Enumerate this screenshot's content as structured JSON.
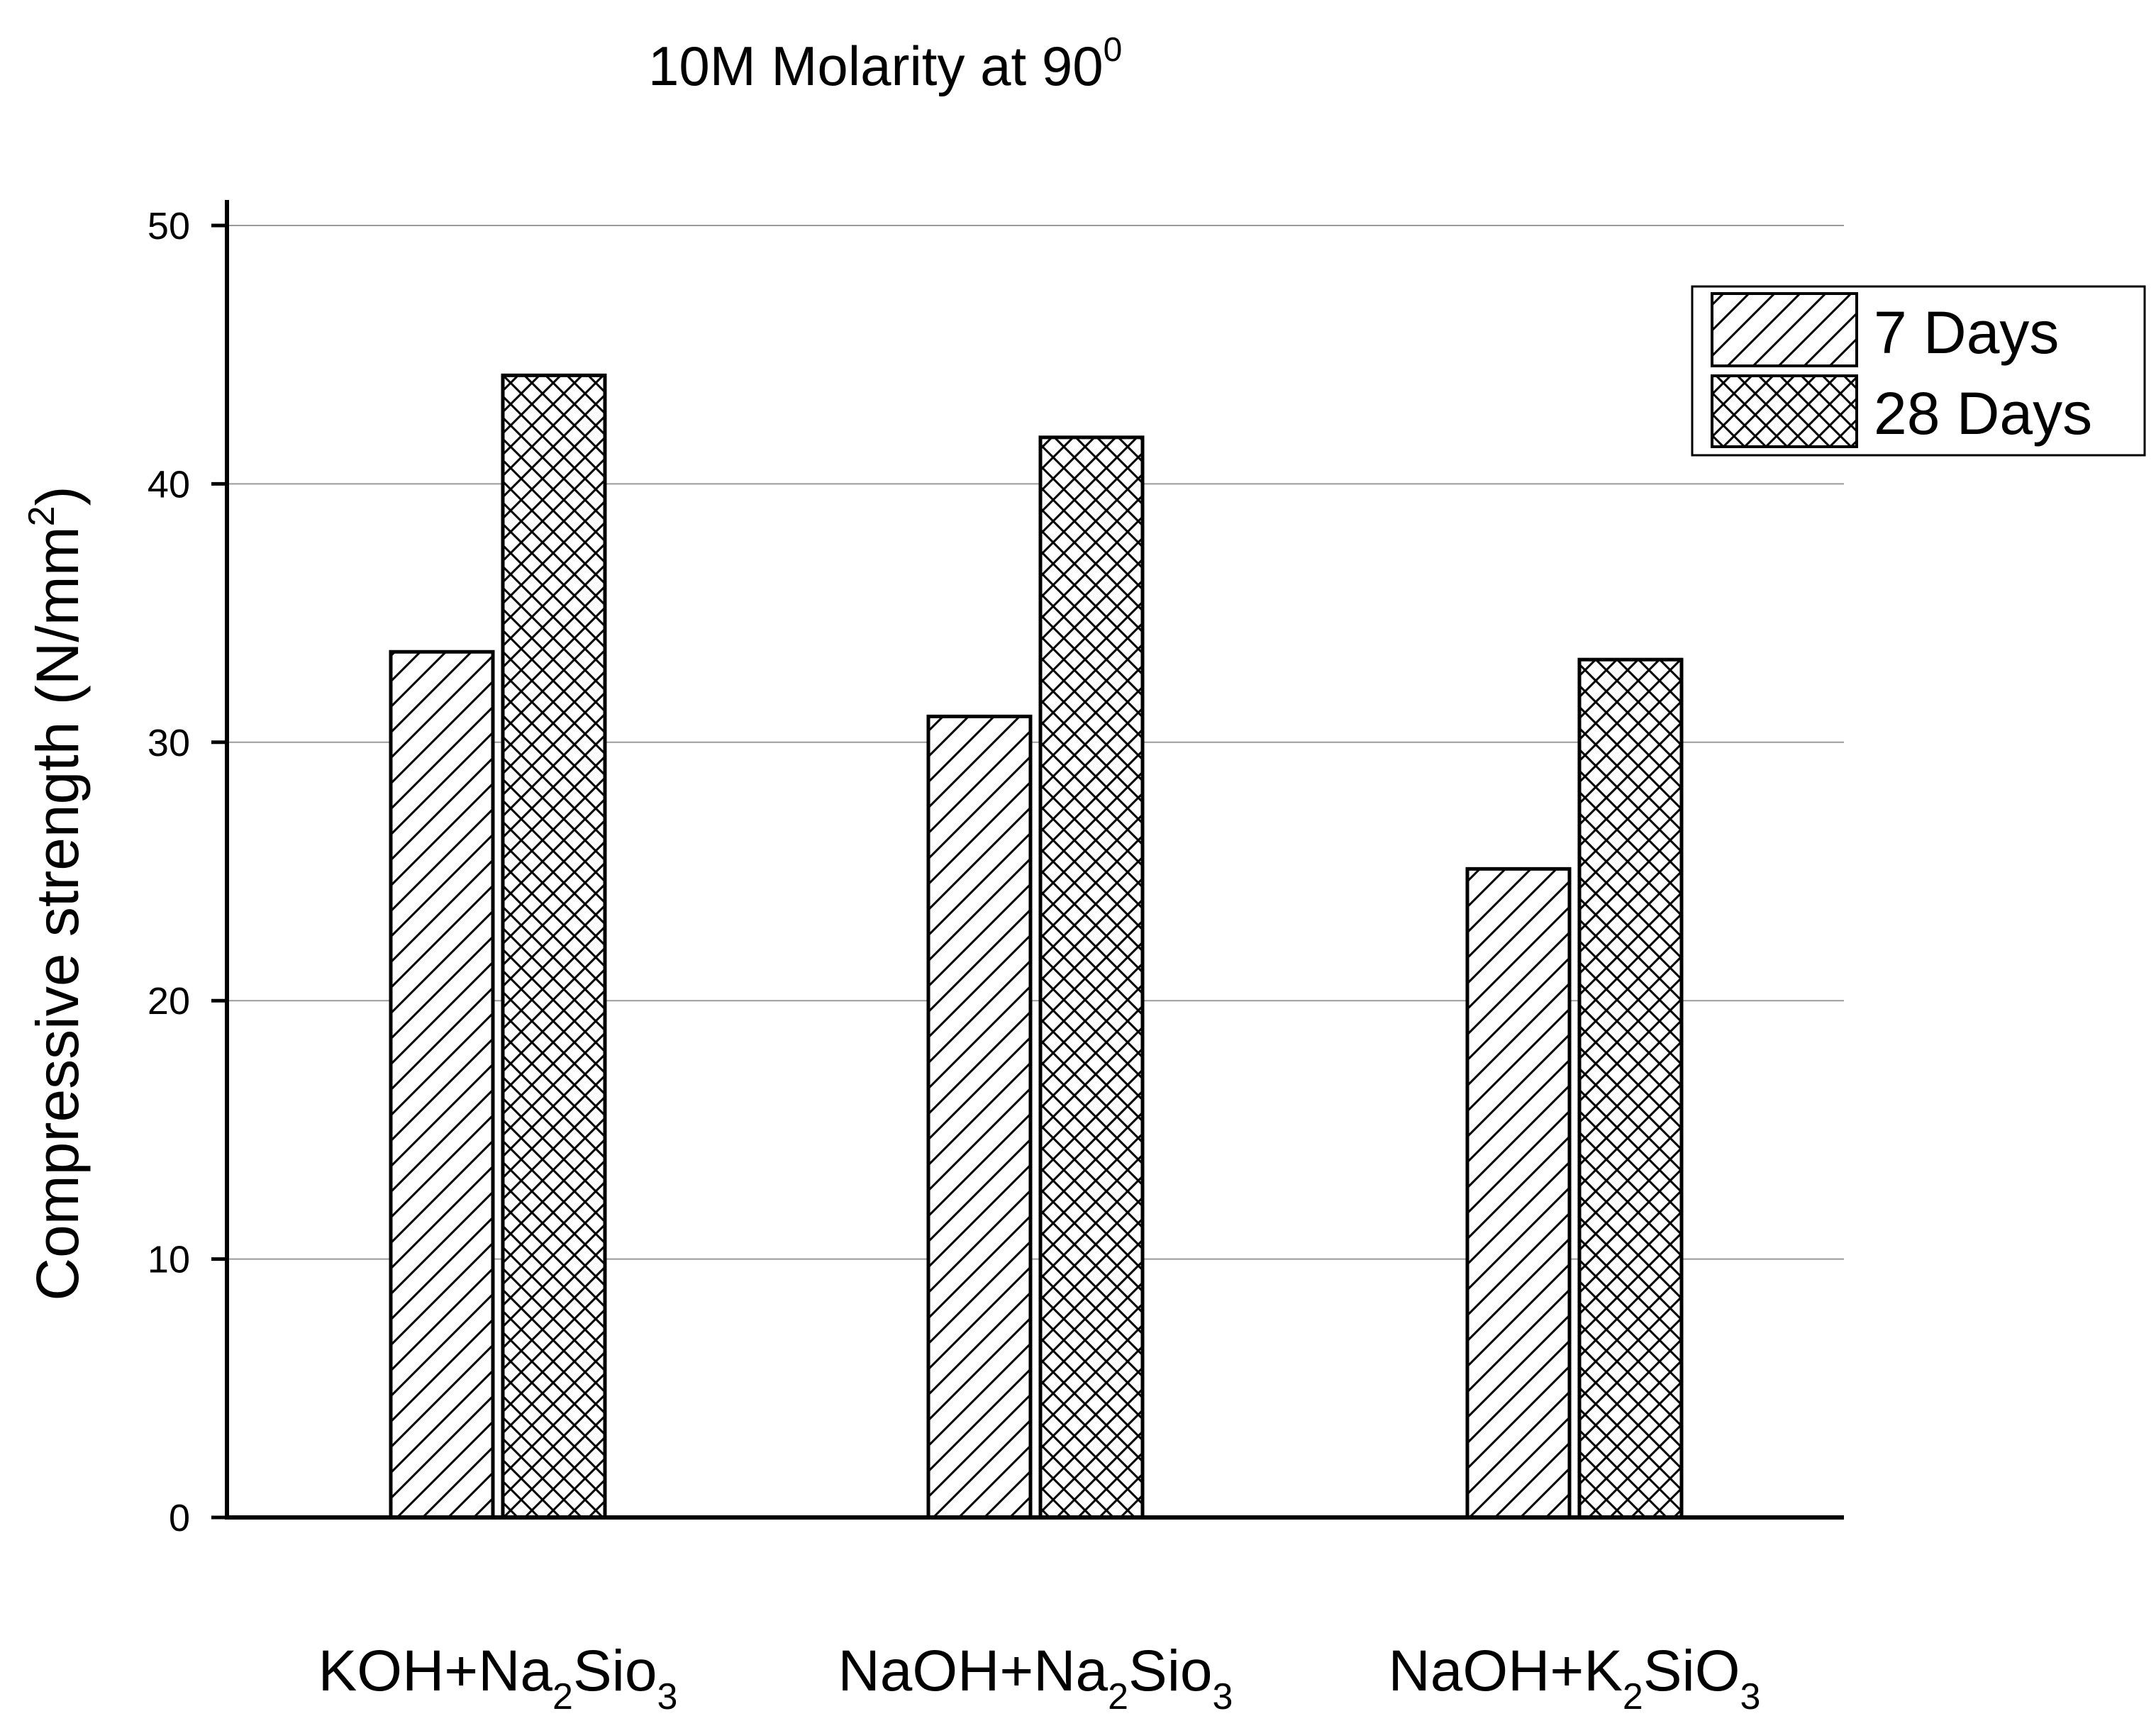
{
  "chart_data": {
    "type": "bar",
    "title": {
      "text": "10M Molarity at 90",
      "sup": "0"
    },
    "ylabel": {
      "pre": "Compressive strength (N/mm",
      "sup": "2",
      "post": ")"
    },
    "xlabel": "",
    "ylim": [
      0,
      50
    ],
    "yticks": [
      "0",
      "10",
      "20",
      "30",
      "40",
      "50"
    ],
    "grid": true,
    "legend_position": "top-right",
    "categories": [
      {
        "label": [
          {
            "t": "KOH+Na"
          },
          {
            "t": "2",
            "sub": true
          },
          {
            "t": "Sio"
          },
          {
            "t": "3",
            "sub": true
          }
        ]
      },
      {
        "label": [
          {
            "t": "NaOH+Na"
          },
          {
            "t": "2",
            "sub": true
          },
          {
            "t": "Sio"
          },
          {
            "t": "3",
            "sub": true
          }
        ]
      },
      {
        "label": [
          {
            "t": "NaOH+K"
          },
          {
            "t": "2",
            "sub": true
          },
          {
            "t": "SiO"
          },
          {
            "t": "3",
            "sub": true
          }
        ]
      }
    ],
    "series": [
      {
        "name": "7 Days",
        "pattern": "diagonal-hatch",
        "values": [
          33.5,
          31.0,
          25.1
        ]
      },
      {
        "name": "28 Days",
        "pattern": "cross-hatch",
        "values": [
          44.2,
          41.8,
          33.2
        ]
      }
    ],
    "colors": {
      "bar_stroke": "#000000",
      "bar_fill": "#ffffff",
      "grid": "#9a9a9a"
    }
  }
}
